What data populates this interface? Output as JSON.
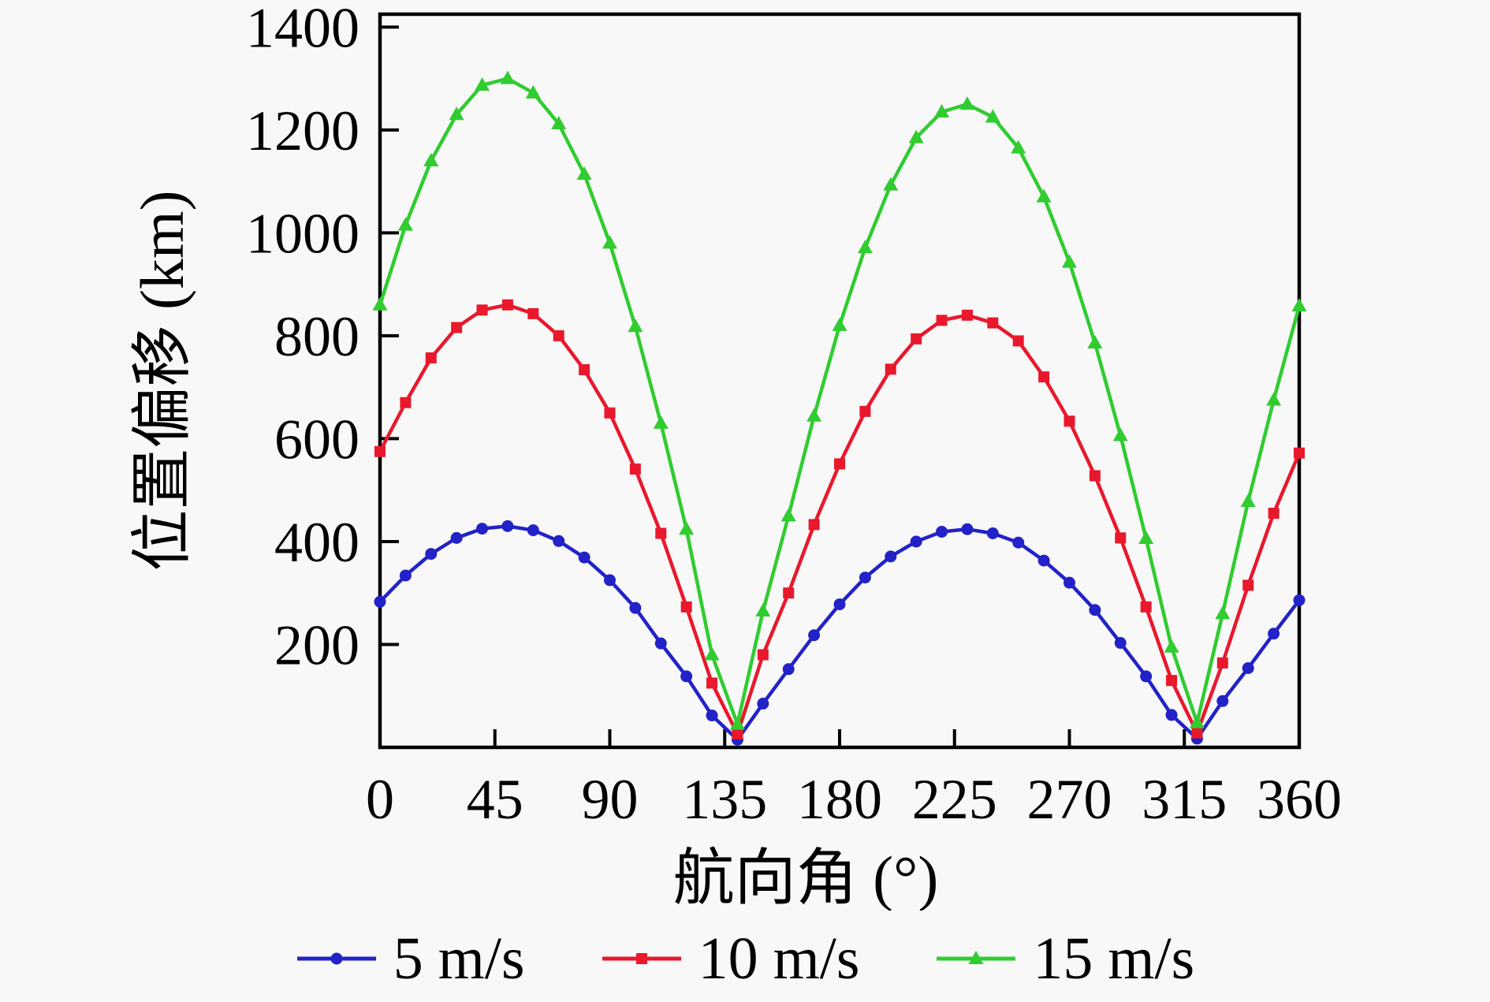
{
  "figure": {
    "background": "#f8f8f8",
    "axis_color": "#000000"
  },
  "chart_data": {
    "type": "line",
    "title": "",
    "xlabel": "航向角 (°)",
    "ylabel": "位置偏移 (km)",
    "xlim": [
      0,
      360
    ],
    "ylim": [
      0,
      1425
    ],
    "grid": false,
    "legend_position": "bottom",
    "x_ticks": [
      0,
      45,
      90,
      135,
      180,
      225,
      270,
      315,
      360
    ],
    "y_ticks": [
      200,
      400,
      600,
      800,
      1000,
      1200,
      1400
    ],
    "x": [
      0,
      10,
      20,
      30,
      40,
      50,
      60,
      70,
      80,
      90,
      100,
      110,
      120,
      130,
      140,
      150,
      160,
      170,
      180,
      190,
      200,
      210,
      220,
      230,
      240,
      250,
      260,
      270,
      280,
      290,
      300,
      310,
      320,
      330,
      340,
      350,
      360
    ],
    "series": [
      {
        "name": "5 m/s",
        "color": "#2222c8",
        "marker": "circle",
        "values": [
          283,
          334,
          376,
          407,
          425,
          430,
          422,
          401,
          369,
          325,
          271,
          202,
          138,
          62,
          15,
          85,
          152,
          218,
          278,
          330,
          371,
          400,
          419,
          424,
          416,
          398,
          363,
          320,
          267,
          203,
          138,
          63,
          17,
          90,
          154,
          221,
          286
        ]
      },
      {
        "name": "10 m/s",
        "color": "#e9182c",
        "marker": "square",
        "values": [
          575,
          670,
          757,
          816,
          850,
          860,
          843,
          800,
          734,
          650,
          541,
          416,
          273,
          125,
          26,
          180,
          300,
          433,
          551,
          653,
          735,
          794,
          830,
          840,
          825,
          790,
          720,
          634,
          528,
          407,
          273,
          130,
          28,
          164,
          315,
          455,
          572
        ]
      },
      {
        "name": "15 m/s",
        "color": "#30cc30",
        "marker": "triangle",
        "values": [
          860,
          1015,
          1140,
          1230,
          1287,
          1300,
          1272,
          1212,
          1114,
          980,
          818,
          630,
          424,
          180,
          45,
          265,
          450,
          644,
          820,
          971,
          1093,
          1185,
          1235,
          1250,
          1225,
          1165,
          1070,
          943,
          786,
          606,
          406,
          195,
          48,
          260,
          478,
          675,
          858
        ]
      }
    ]
  }
}
